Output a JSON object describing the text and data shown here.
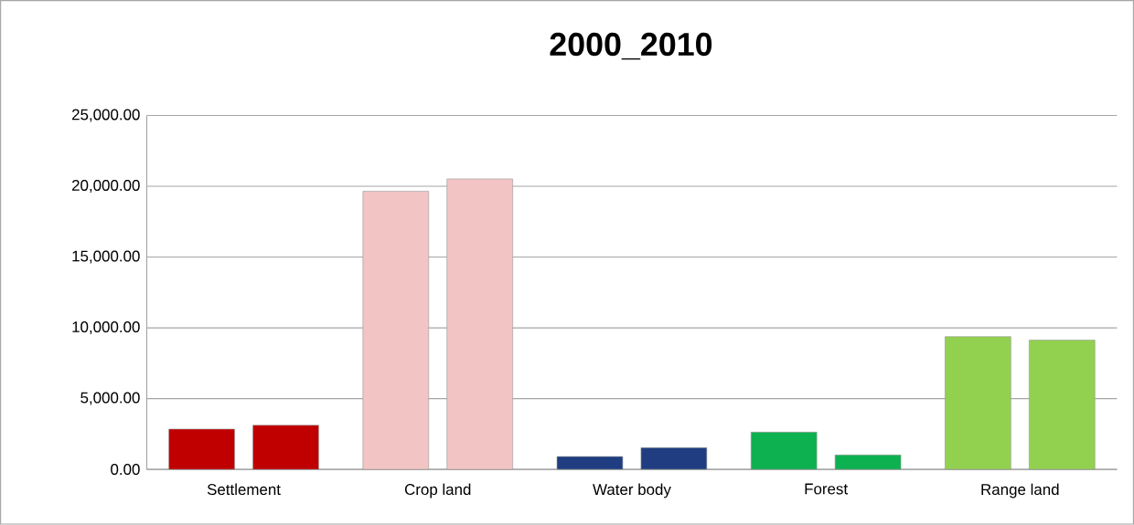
{
  "chart_data": {
    "type": "bar",
    "title": "2000_2010",
    "categories": [
      "Settlement",
      "Crop land",
      "Water body",
      "Forest",
      "Range land"
    ],
    "series": [
      {
        "colors": [
          "#c00000",
          "#f2c4c4",
          "#1f3d80",
          "#0db14f",
          "#92d050"
        ],
        "values": [
          2850,
          19650,
          910,
          2630,
          9380
        ]
      },
      {
        "colors": [
          "#c00000",
          "#f2c4c4",
          "#1f3d80",
          "#0db14f",
          "#92d050"
        ],
        "values": [
          3120,
          20520,
          1530,
          1020,
          9140
        ]
      }
    ],
    "ylim": [
      0,
      25000
    ],
    "yticks": [
      {
        "value": 0,
        "label": "0.00"
      },
      {
        "value": 5000,
        "label": "5,000.00"
      },
      {
        "value": 10000,
        "label": "10,000.00"
      },
      {
        "value": 15000,
        "label": "15,000.00"
      },
      {
        "value": 20000,
        "label": "20,000.00"
      },
      {
        "value": 25000,
        "label": "25,000.00"
      }
    ],
    "grid": "y"
  }
}
